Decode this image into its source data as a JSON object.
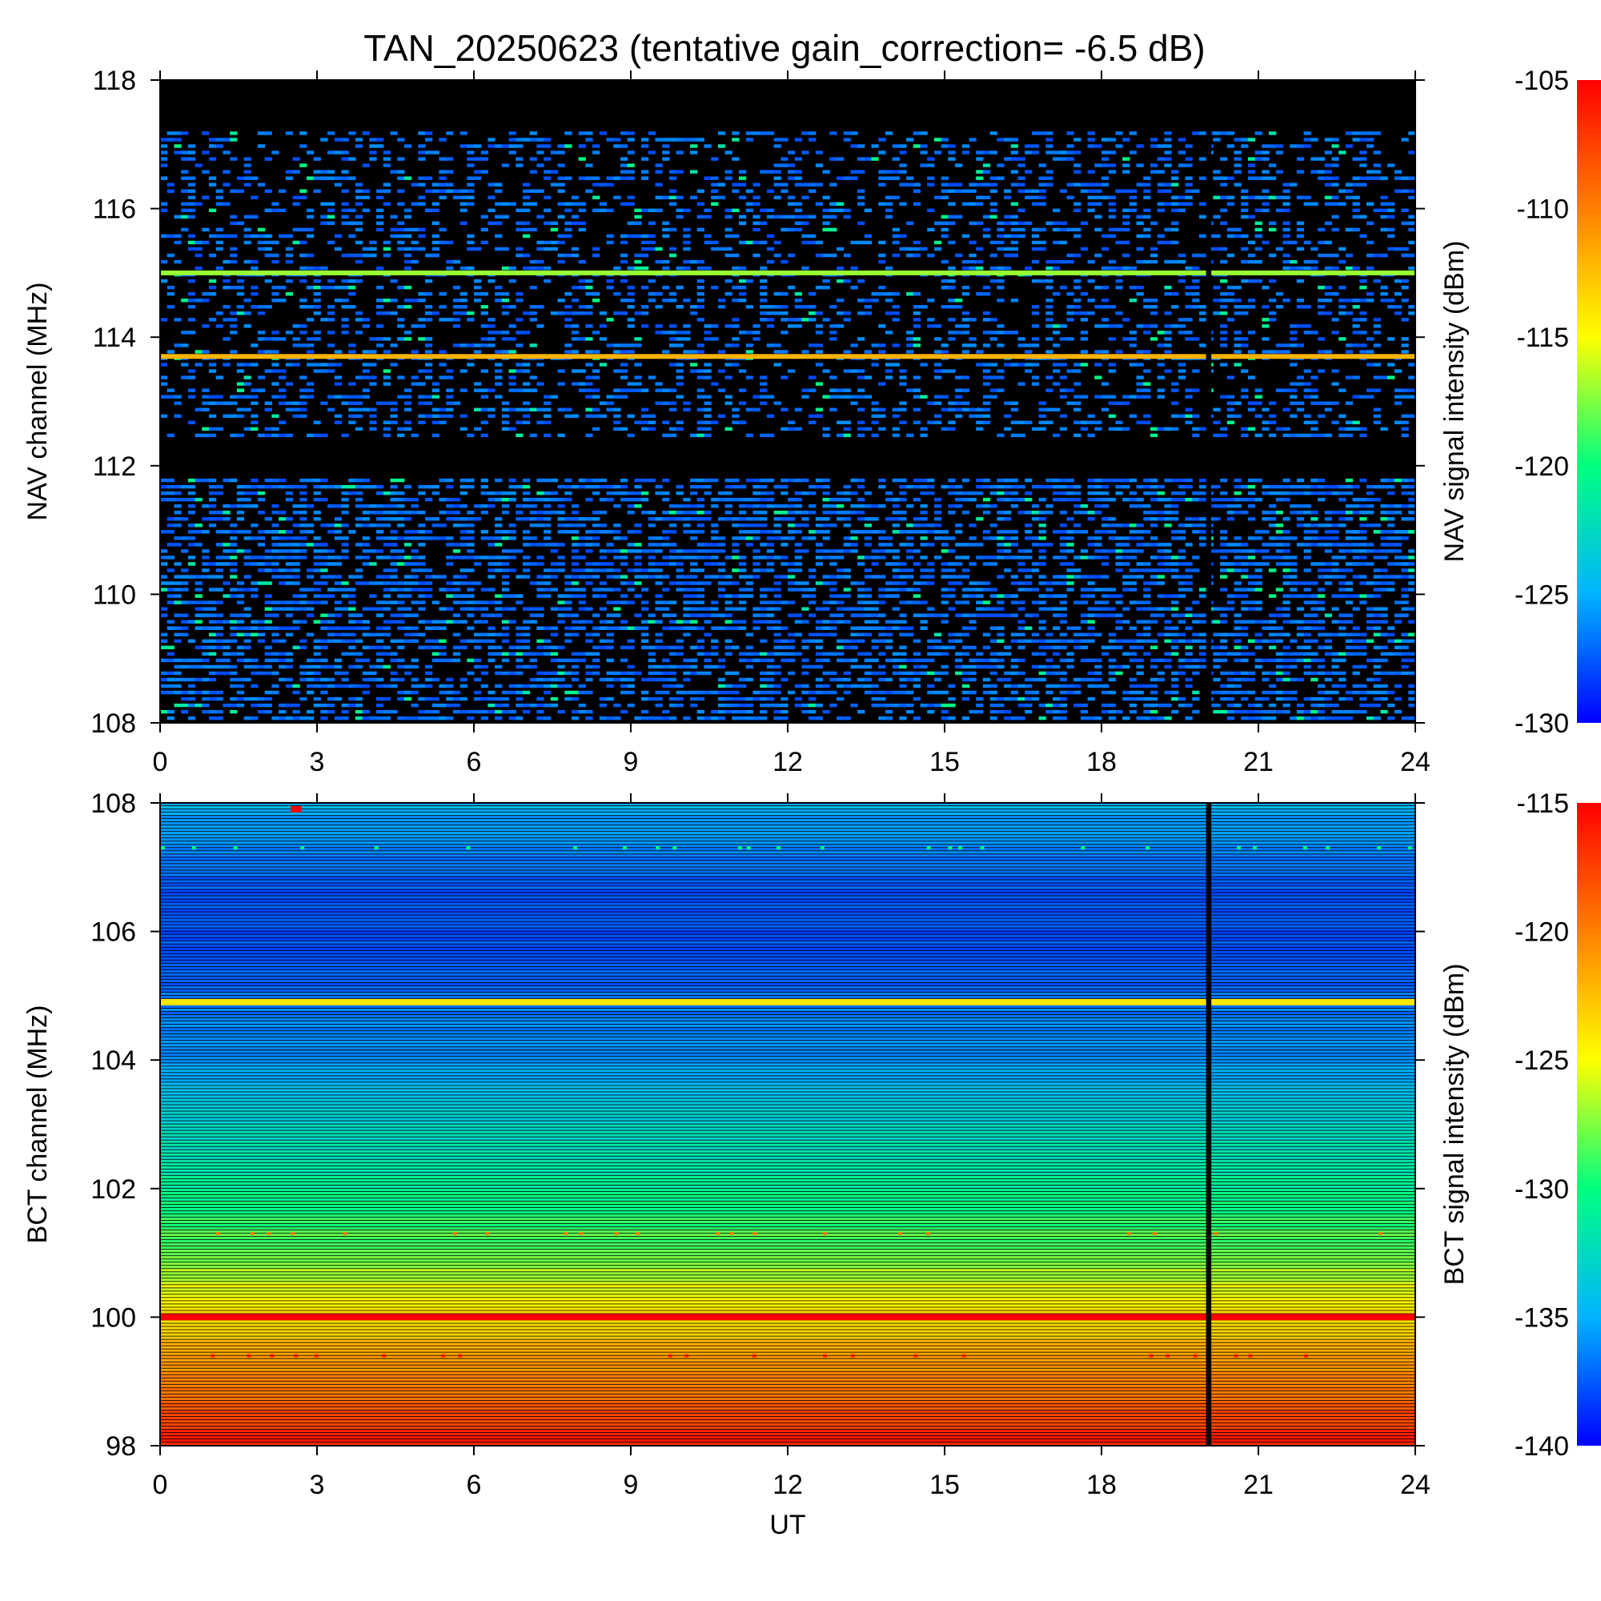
{
  "chart_data": [
    {
      "type": "heatmap",
      "panel": "NAV",
      "title": "TAN_20250623 (tentative gain_correction= -6.5 dB)",
      "xlabel": "",
      "ylabel": "NAV channel (MHz)",
      "colorbar_label": "NAV signal intensity (dBm)",
      "xlim": [
        0,
        24
      ],
      "ylim": [
        108,
        118
      ],
      "xticks": [
        "0",
        "3",
        "6",
        "9",
        "12",
        "15",
        "18",
        "21",
        "24"
      ],
      "yticks": [
        "108",
        "110",
        "112",
        "114",
        "116",
        "118"
      ],
      "color_range": [
        -130,
        -105
      ],
      "colorbar_ticks": [
        "-105",
        "-110",
        "-115",
        "-120",
        "-125",
        "-130"
      ],
      "colormap": [
        "#0000ff",
        "#00b4ff",
        "#00ff80",
        "#ffff00",
        "#ff8000",
        "#ff0000"
      ],
      "noise_floor": [
        {
          "band": [
            108.0,
            111.8
          ],
          "description": "dense weak signals",
          "level_dbm": -128
        },
        {
          "band": [
            111.8,
            112.4
          ],
          "description": "no signal",
          "level_dbm": null
        },
        {
          "band": [
            112.4,
            117.2
          ],
          "description": "sparse weak signals",
          "level_dbm": -128
        },
        {
          "band": [
            117.2,
            118.0
          ],
          "description": "no signal",
          "level_dbm": null
        }
      ],
      "persistent_lines": [
        {
          "freq_mhz": 113.7,
          "level_dbm": -112
        },
        {
          "freq_mhz": 115.0,
          "level_dbm": -117
        }
      ],
      "data_gap_ut": [
        20.0,
        20.1
      ]
    },
    {
      "type": "heatmap",
      "panel": "BCT",
      "title": "",
      "xlabel": "UT",
      "ylabel": "BCT channel (MHz)",
      "colorbar_label": "BCT signal intensity (dBm)",
      "xlim": [
        0,
        24
      ],
      "ylim": [
        98,
        108
      ],
      "xticks": [
        "0",
        "3",
        "6",
        "9",
        "12",
        "15",
        "18",
        "21",
        "24"
      ],
      "yticks": [
        "98",
        "100",
        "102",
        "104",
        "106",
        "108"
      ],
      "color_range": [
        -140,
        -115
      ],
      "colorbar_ticks": [
        "-115",
        "-120",
        "-125",
        "-130",
        "-135",
        "-140"
      ],
      "colormap": [
        "#0000ff",
        "#00b4ff",
        "#00ff80",
        "#ffff00",
        "#ff8000",
        "#ff0000"
      ],
      "background_profile": [
        {
          "freq_mhz": 98.0,
          "level_dbm": -116
        },
        {
          "freq_mhz": 99.0,
          "level_dbm": -120
        },
        {
          "freq_mhz": 100.0,
          "level_dbm": -124
        },
        {
          "freq_mhz": 101.0,
          "level_dbm": -128
        },
        {
          "freq_mhz": 102.0,
          "level_dbm": -131
        },
        {
          "freq_mhz": 103.0,
          "level_dbm": -133
        },
        {
          "freq_mhz": 104.0,
          "level_dbm": -136
        },
        {
          "freq_mhz": 105.0,
          "level_dbm": -137
        },
        {
          "freq_mhz": 106.0,
          "level_dbm": -138
        },
        {
          "freq_mhz": 107.0,
          "level_dbm": -137
        },
        {
          "freq_mhz": 108.0,
          "level_dbm": -135
        }
      ],
      "persistent_lines": [
        {
          "freq_mhz": 100.0,
          "level_dbm": -115
        },
        {
          "freq_mhz": 104.9,
          "level_dbm": -124
        }
      ],
      "intermittent_lines": [
        {
          "freq_mhz": 99.4,
          "level_dbm": -116
        },
        {
          "freq_mhz": 101.3,
          "level_dbm": -120
        },
        {
          "freq_mhz": 107.3,
          "level_dbm": -130
        }
      ],
      "spots": [
        {
          "ut": 2.6,
          "freq_mhz": 107.9,
          "level_dbm": -115
        }
      ],
      "data_gap_ut": [
        20.0,
        20.1
      ]
    }
  ]
}
